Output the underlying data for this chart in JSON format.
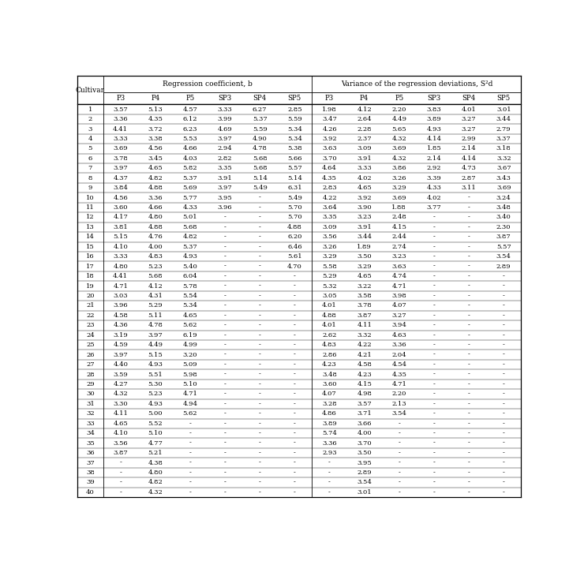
{
  "col_header_row1_left": "Regression coefficient, b",
  "col_header_row1_right": "Variance of the regression deviations, S²d",
  "sub_cols": [
    "P3",
    "P4",
    "P5",
    "SP3",
    "SP4",
    "SP5",
    "P3",
    "P4",
    "P5",
    "SP3",
    "SP4",
    "SP5"
  ],
  "rows": [
    [
      "1",
      "3.57",
      "5.13",
      "4.57",
      "3.33",
      "6.27",
      "2.85",
      "1.98",
      "4.12",
      "2.20",
      "3.83",
      "4.01",
      "3.01"
    ],
    [
      "2",
      "3.36",
      "4.35",
      "6.12",
      "3.99",
      "5.37",
      "5.59",
      "3.47",
      "2.64",
      "4.49",
      "3.89",
      "3.27",
      "3.44"
    ],
    [
      "3",
      "4.41",
      "3.72",
      "6.23",
      "4.69",
      "5.59",
      "5.34",
      "4.26",
      "2.28",
      "5.65",
      "4.93",
      "3.27",
      "2.79"
    ],
    [
      "4",
      "3.33",
      "3.38",
      "5.53",
      "3.97",
      "4.90",
      "5.34",
      "3.92",
      "2.37",
      "4.32",
      "4.14",
      "2.99",
      "3.37"
    ],
    [
      "5",
      "3.69",
      "4.56",
      "4.66",
      "2.94",
      "4.78",
      "5.38",
      "3.63",
      "3.09",
      "3.69",
      "1.85",
      "2.14",
      "3.18"
    ],
    [
      "6",
      "3.78",
      "3.45",
      "4.03",
      "2.82",
      "5.68",
      "5.66",
      "3.70",
      "3.91",
      "4.32",
      "2.14",
      "4.14",
      "3.32"
    ],
    [
      "7",
      "3.97",
      "4.65",
      "5.82",
      "3.35",
      "5.68",
      "5.57",
      "4.64",
      "3.33",
      "3.86",
      "2.92",
      "4.73",
      "3.67"
    ],
    [
      "8",
      "4.37",
      "4.82",
      "5.37",
      "3.91",
      "5.14",
      "5.14",
      "4.35",
      "4.02",
      "3.26",
      "3.39",
      "2.87",
      "3.43"
    ],
    [
      "9",
      "3.84",
      "4.88",
      "5.69",
      "3.97",
      "5.49",
      "6.31",
      "2.83",
      "4.65",
      "3.29",
      "4.33",
      "3.11",
      "3.69"
    ],
    [
      "10",
      "4.56",
      "3.36",
      "5.77",
      "3.95",
      "-",
      "5.49",
      "4.22",
      "3.92",
      "3.69",
      "4.02",
      "-",
      "3.24"
    ],
    [
      "11",
      "3.60",
      "4.66",
      "4.33",
      "3.96",
      "-",
      "5.70",
      "3.64",
      "3.90",
      "1.88",
      "3.77",
      "-",
      "3.48"
    ],
    [
      "12",
      "4.17",
      "4.80",
      "5.01",
      "-",
      "-",
      "5.70",
      "3.35",
      "3.23",
      "2.48",
      "-",
      "-",
      "3.40"
    ],
    [
      "13",
      "3.81",
      "4.88",
      "5.68",
      "-",
      "-",
      "4.88",
      "3.09",
      "3.91",
      "4.15",
      "-",
      "-",
      "2.30"
    ],
    [
      "14",
      "5.15",
      "4.76",
      "4.82",
      "-",
      "-",
      "6.20",
      "3.56",
      "3.44",
      "2.44",
      "-",
      "-",
      "3.87"
    ],
    [
      "15",
      "4.10",
      "4.00",
      "5.37",
      "-",
      "-",
      "6.46",
      "3.26",
      "1.89",
      "2.74",
      "-",
      "-",
      "5.57"
    ],
    [
      "16",
      "3.33",
      "4.83",
      "4.93",
      "-",
      "-",
      "5.61",
      "3.29",
      "3.50",
      "3.23",
      "-",
      "-",
      "3.54"
    ],
    [
      "17",
      "4.80",
      "5.23",
      "5.40",
      "-",
      "-",
      "4.70",
      "5.58",
      "3.29",
      "3.63",
      "-",
      "-",
      "2.89"
    ],
    [
      "18",
      "4.41",
      "5.68",
      "6.04",
      "-",
      "-",
      "-",
      "5.29",
      "4.65",
      "4.74",
      "-",
      "-",
      "-"
    ],
    [
      "19",
      "4.71",
      "4.12",
      "5.78",
      "-",
      "-",
      "-",
      "5.32",
      "3.22",
      "4.71",
      "-",
      "-",
      "-"
    ],
    [
      "20",
      "3.03",
      "4.31",
      "5.54",
      "-",
      "-",
      "-",
      "3.05",
      "3.58",
      "3.98",
      "-",
      "-",
      "-"
    ],
    [
      "21",
      "3.96",
      "5.29",
      "5.34",
      "-",
      "-",
      "-",
      "4.01",
      "3.78",
      "4.07",
      "-",
      "-",
      "-"
    ],
    [
      "22",
      "4.58",
      "5.11",
      "4.65",
      "-",
      "-",
      "-",
      "4.88",
      "3.87",
      "3.27",
      "-",
      "-",
      "-"
    ],
    [
      "23",
      "4.36",
      "4.78",
      "5.62",
      "-",
      "-",
      "-",
      "4.01",
      "4.11",
      "3.94",
      "-",
      "-",
      "-"
    ],
    [
      "24",
      "3.19",
      "3.97",
      "6.19",
      "-",
      "-",
      "-",
      "2.62",
      "3.32",
      "4.63",
      "-",
      "-",
      "-"
    ],
    [
      "25",
      "4.59",
      "4.49",
      "4.99",
      "-",
      "-",
      "-",
      "4.83",
      "4.22",
      "3.36",
      "-",
      "-",
      "-"
    ],
    [
      "26",
      "3.97",
      "5.15",
      "3.20",
      "-",
      "-",
      "-",
      "2.86",
      "4.21",
      "2.04",
      "-",
      "-",
      "-"
    ],
    [
      "27",
      "4.40",
      "4.93",
      "5.09",
      "-",
      "-",
      "-",
      "4.23",
      "4.58",
      "4.54",
      "-",
      "-",
      "-"
    ],
    [
      "28",
      "3.59",
      "5.51",
      "5.98",
      "-",
      "-",
      "-",
      "3.48",
      "4.23",
      "4.35",
      "-",
      "-",
      "-"
    ],
    [
      "29",
      "4.27",
      "5.30",
      "5.10",
      "-",
      "-",
      "-",
      "3.60",
      "4.15",
      "4.71",
      "-",
      "-",
      "-"
    ],
    [
      "30",
      "4.32",
      "5.23",
      "4.71",
      "-",
      "-",
      "-",
      "4.07",
      "4.98",
      "2.20",
      "-",
      "-",
      "-"
    ],
    [
      "31",
      "3.30",
      "4.93",
      "4.94",
      "-",
      "-",
      "-",
      "3.28",
      "3.57",
      "2.13",
      "-",
      "-",
      "-"
    ],
    [
      "32",
      "4.11",
      "5.00",
      "5.62",
      "-",
      "-",
      "-",
      "4.86",
      "3.71",
      "3.54",
      "-",
      "-",
      "-"
    ],
    [
      "33",
      "4.65",
      "5.52",
      "-",
      "-",
      "-",
      "-",
      "3.89",
      "3.66",
      "-",
      "-",
      "-",
      "-"
    ],
    [
      "34",
      "4.10",
      "5.10",
      "-",
      "-",
      "-",
      "-",
      "5.74",
      "4.00",
      "-",
      "-",
      "-",
      "-"
    ],
    [
      "35",
      "3.56",
      "4.77",
      "-",
      "-",
      "-",
      "-",
      "3.36",
      "3.70",
      "-",
      "-",
      "-",
      "-"
    ],
    [
      "36",
      "3.87",
      "5.21",
      "-",
      "-",
      "-",
      "-",
      "2.93",
      "3.50",
      "-",
      "-",
      "-",
      "-"
    ],
    [
      "37",
      "-",
      "4.38",
      "-",
      "-",
      "-",
      "-",
      "-",
      "3.95",
      "-",
      "-",
      "-",
      "-"
    ],
    [
      "38",
      "-",
      "4.80",
      "-",
      "-",
      "-",
      "-",
      "-",
      "2.89",
      "-",
      "-",
      "-",
      "-"
    ],
    [
      "39",
      "-",
      "4.82",
      "-",
      "-",
      "-",
      "-",
      "-",
      "3.54",
      "-",
      "-",
      "-",
      "-"
    ],
    [
      "40",
      "-",
      "4.32",
      "-",
      "-",
      "-",
      "-",
      "-",
      "3.01",
      "-",
      "-",
      "-",
      "-"
    ]
  ]
}
